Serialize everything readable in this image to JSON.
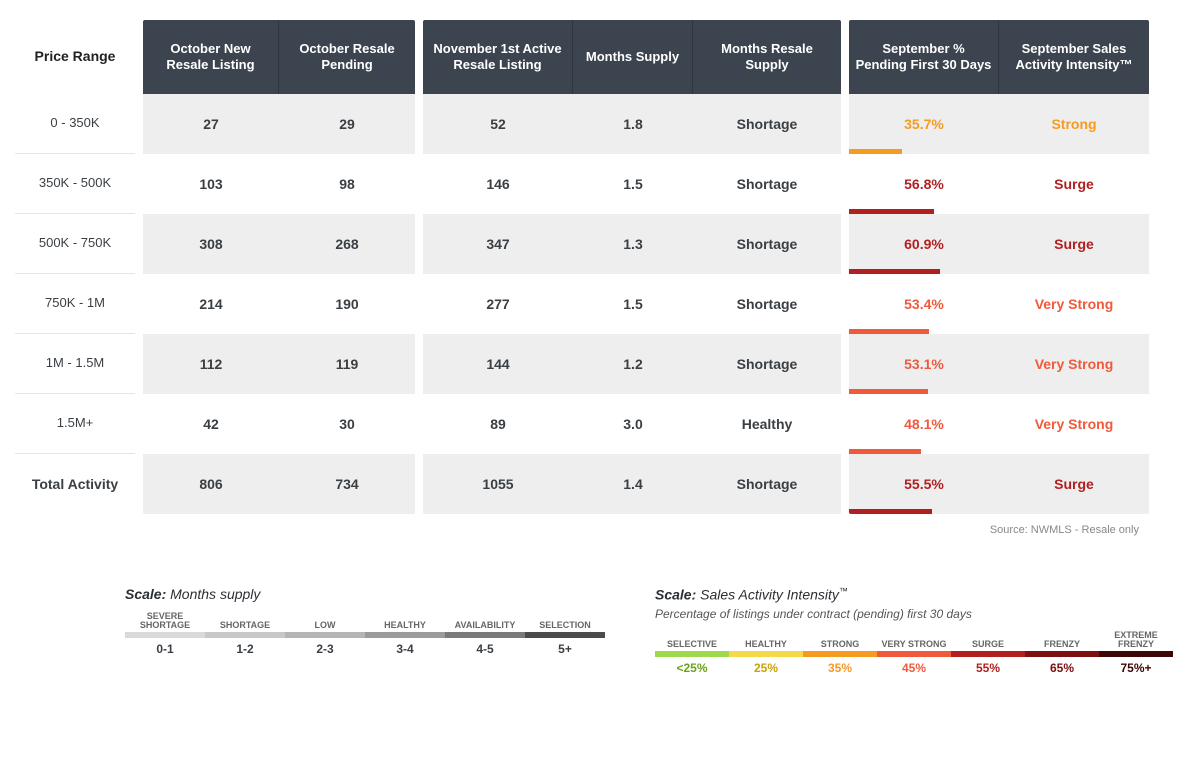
{
  "header": {
    "price_range": "Price Range",
    "g1": [
      "October New Resale Listing",
      "October Resale Pending"
    ],
    "g2": [
      "November 1st Active Resale Listing",
      "Months Supply",
      "Months Resale Supply"
    ],
    "g3": [
      "September % Pending First 30 Days",
      "September Sales Activity Intensity™"
    ]
  },
  "col_widths": {
    "g1": [
      136,
      136
    ],
    "g2": [
      150,
      120,
      148
    ],
    "g3": [
      150,
      150
    ]
  },
  "row_labels": [
    "0 - 350K",
    "350K - 500K",
    "500K - 750K",
    "750K - 1M",
    "1M - 1.5M",
    "1.5M+",
    "Total Activity"
  ],
  "row_label_bold_last": true,
  "rows": [
    {
      "g1": [
        "27",
        "29"
      ],
      "g2": [
        "52",
        "1.8",
        "Shortage"
      ],
      "pct": "35.7%",
      "pct_bar_w": 53,
      "pct_color": "#f59b22",
      "intensity": "Strong",
      "int_color": "#f59b22"
    },
    {
      "g1": [
        "103",
        "98"
      ],
      "g2": [
        "146",
        "1.5",
        "Shortage"
      ],
      "pct": "56.8%",
      "pct_bar_w": 85,
      "pct_color": "#b11f1f",
      "intensity": "Surge",
      "int_color": "#b11f1f"
    },
    {
      "g1": [
        "308",
        "268"
      ],
      "g2": [
        "347",
        "1.3",
        "Shortage"
      ],
      "pct": "60.9%",
      "pct_bar_w": 91,
      "pct_color": "#b11f1f",
      "intensity": "Surge",
      "int_color": "#b11f1f"
    },
    {
      "g1": [
        "214",
        "190"
      ],
      "g2": [
        "277",
        "1.5",
        "Shortage"
      ],
      "pct": "53.4%",
      "pct_bar_w": 80,
      "pct_color": "#ef5a3c",
      "intensity": "Very Strong",
      "int_color": "#ef5a3c"
    },
    {
      "g1": [
        "112",
        "119"
      ],
      "g2": [
        "144",
        "1.2",
        "Shortage"
      ],
      "pct": "53.1%",
      "pct_bar_w": 79,
      "pct_color": "#ef5a3c",
      "intensity": "Very Strong",
      "int_color": "#ef5a3c"
    },
    {
      "g1": [
        "42",
        "30"
      ],
      "g2": [
        "89",
        "3.0",
        "Healthy"
      ],
      "pct": "48.1%",
      "pct_bar_w": 72,
      "pct_color": "#ef5a3c",
      "intensity": "Very Strong",
      "int_color": "#ef5a3c"
    },
    {
      "g1": [
        "806",
        "734"
      ],
      "g2": [
        "1055",
        "1.4",
        "Shortage"
      ],
      "pct": "55.5%",
      "pct_bar_w": 83,
      "pct_color": "#b11f1f",
      "intensity": "Surge",
      "int_color": "#b11f1f"
    }
  ],
  "source": "Source: NWMLS  -  Resale only",
  "legend_months": {
    "title_bold": "Scale:",
    "title_rest": " Months supply",
    "items": [
      {
        "label": "SEVERE SHORTAGE",
        "val": "0-1",
        "color": "#d9d9d9"
      },
      {
        "label": "SHORTAGE",
        "val": "1-2",
        "color": "#c8c8c8"
      },
      {
        "label": "LOW",
        "val": "2-3",
        "color": "#b5b5b5"
      },
      {
        "label": "HEALTHY",
        "val": "3-4",
        "color": "#9b9b9b"
      },
      {
        "label": "AVAILABILITY",
        "val": "4-5",
        "color": "#7a7a7a"
      },
      {
        "label": "SELECTION",
        "val": "5+",
        "color": "#4b4b4b"
      }
    ]
  },
  "legend_intensity": {
    "title_bold": "Scale:",
    "title_rest": " Sales Activity Intensity",
    "tm": "™",
    "subtitle": "Percentage of listings under contract (pending) first 30 days",
    "items": [
      {
        "label": "SELECTIVE",
        "val": "<25%",
        "color": "#9fd84a",
        "val_color": "#6aa516"
      },
      {
        "label": "HEALTHY",
        "val": "25%",
        "color": "#f6d948",
        "val_color": "#c9a20a"
      },
      {
        "label": "STRONG",
        "val": "35%",
        "color": "#f59b22",
        "val_color": "#f59b22"
      },
      {
        "label": "VERY STRONG",
        "val": "45%",
        "color": "#ef5a3c",
        "val_color": "#ef5a3c"
      },
      {
        "label": "SURGE",
        "val": "55%",
        "color": "#b11f1f",
        "val_color": "#b11f1f"
      },
      {
        "label": "FRENZY",
        "val": "65%",
        "color": "#7d0f11",
        "val_color": "#7d0f11"
      },
      {
        "label": "EXTREME FRENZY",
        "val": "75%+",
        "color": "#3e0606",
        "val_color": "#3e0606"
      }
    ]
  }
}
